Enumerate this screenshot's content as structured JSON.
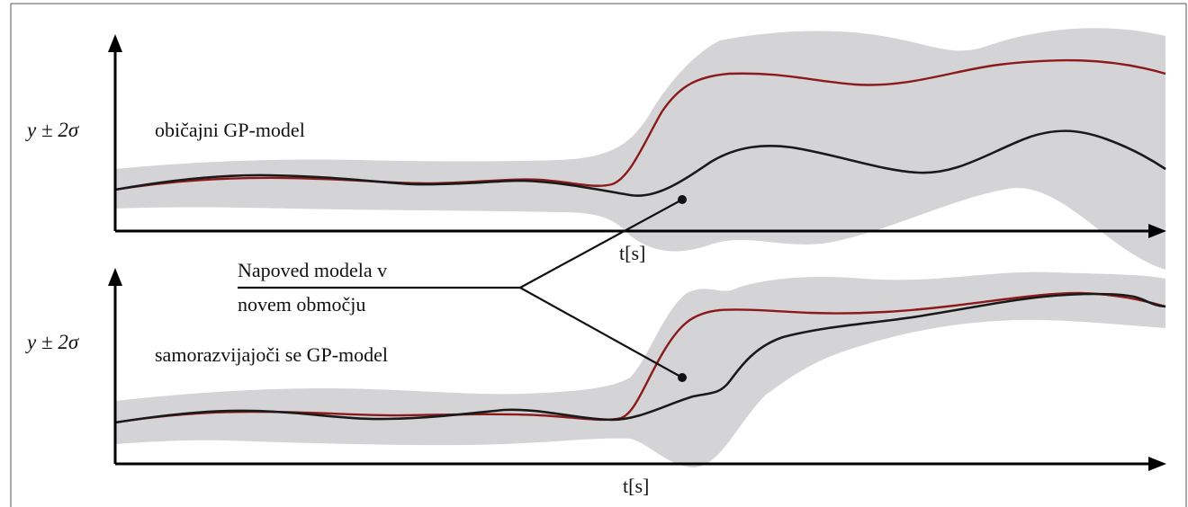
{
  "top_panel": {
    "ylabel": "y ± 2σ",
    "title": "običajni GP-model",
    "xlabel": "t[s]"
  },
  "bottom_panel": {
    "ylabel": "y ± 2σ",
    "title": "samorazvijajoči se GP-model",
    "xlabel": "t[s]"
  },
  "annotation": {
    "line1": "Napoved modela v",
    "line2": "novem območju"
  },
  "colors": {
    "band": "#d4d4d6",
    "true_signal": "#8b1a1a",
    "prediction": "#1a1a1a",
    "axis": "#000000"
  }
}
